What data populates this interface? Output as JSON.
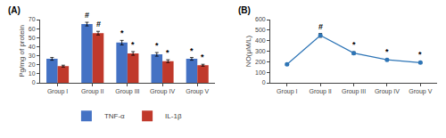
{
  "chart_data": [
    {
      "type": "bar",
      "title": "(A)",
      "categories": [
        "Group I",
        "Group II",
        "Group III",
        "Group IV",
        "Group V"
      ],
      "series": [
        {
          "name": "TNF-α",
          "color": "#4472C4",
          "values": [
            26.5,
            65.0,
            44.5,
            31.5,
            26.5
          ],
          "errors": [
            1.5,
            2.0,
            2.5,
            2.0,
            1.5
          ],
          "annotations": [
            null,
            "#",
            "*",
            "*",
            "*"
          ]
        },
        {
          "name": "IL-1β",
          "color": "#C0392B",
          "values": [
            18.5,
            55.0,
            32.5,
            24.0,
            19.5
          ],
          "errors": [
            1.0,
            2.0,
            2.0,
            1.5,
            1.0
          ],
          "annotations": [
            null,
            "#",
            "*",
            "*",
            "*"
          ]
        }
      ],
      "ylabel": "Pg/mg of protein",
      "ylim": [
        0,
        70
      ],
      "yticks": [
        0,
        10,
        20,
        30,
        40,
        50,
        60,
        70
      ],
      "grid": false,
      "legend": "bottom"
    },
    {
      "type": "line",
      "title": "(B)",
      "categories": [
        "Group I",
        "Group II",
        "Group III",
        "Group IV",
        "Group V"
      ],
      "series": [
        {
          "color": "#2E75B6",
          "values": [
            175,
            450,
            282,
            218,
            192
          ],
          "errors": [
            10,
            18,
            12,
            8,
            8
          ],
          "annotations": [
            null,
            "#",
            "*",
            "*",
            "*"
          ]
        }
      ],
      "ylabel": "NO(μM/L)",
      "ylim": [
        0,
        600
      ],
      "yticks": [
        0,
        100,
        200,
        300,
        400,
        500,
        600
      ],
      "grid": false,
      "marker": "circle"
    }
  ]
}
